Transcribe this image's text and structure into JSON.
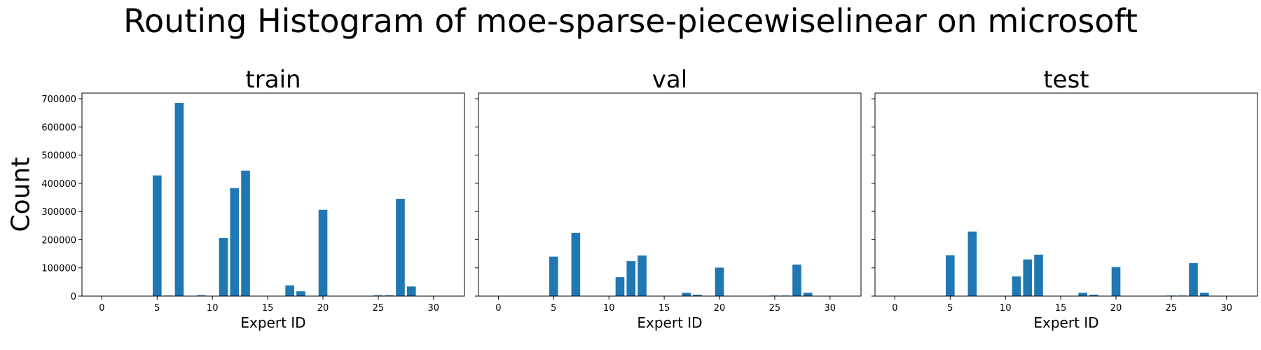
{
  "figure": {
    "title": "Routing Histogram of moe-sparse-piecewiselinear on microsoft"
  },
  "chart_data": [
    {
      "type": "bar",
      "title": "train",
      "xlabel": "Expert ID",
      "ylabel": "Count",
      "xlim": [
        -1.8,
        32.8
      ],
      "ylim": [
        0,
        720000
      ],
      "x_ticks": [
        0,
        5,
        10,
        15,
        20,
        25,
        30
      ],
      "y_ticks": [
        0,
        100000,
        200000,
        300000,
        400000,
        500000,
        600000,
        700000
      ],
      "y_tick_labels": [
        "0",
        "100000",
        "200000",
        "300000",
        "400000",
        "500000",
        "600000",
        "700000"
      ],
      "bar_color": "#1f77b4",
      "categories": [
        0,
        1,
        2,
        3,
        4,
        5,
        6,
        7,
        8,
        9,
        10,
        11,
        12,
        13,
        14,
        15,
        16,
        17,
        18,
        19,
        20,
        21,
        22,
        23,
        24,
        25,
        26,
        27,
        28,
        29,
        30,
        31
      ],
      "values": [
        0,
        0,
        0,
        0,
        0,
        428000,
        2000,
        685000,
        0,
        3000,
        0,
        206000,
        383000,
        445000,
        0,
        0,
        0,
        38000,
        17000,
        0,
        306000,
        0,
        0,
        0,
        0,
        3000,
        3000,
        345000,
        34000,
        0,
        0,
        0
      ]
    },
    {
      "type": "bar",
      "title": "val",
      "xlabel": "Expert ID",
      "ylabel": "",
      "xlim": [
        -1.8,
        32.8
      ],
      "ylim": [
        0,
        720000
      ],
      "x_ticks": [
        0,
        5,
        10,
        15,
        20,
        25,
        30
      ],
      "bar_color": "#1f77b4",
      "categories": [
        0,
        1,
        2,
        3,
        4,
        5,
        6,
        7,
        8,
        9,
        10,
        11,
        12,
        13,
        14,
        15,
        16,
        17,
        18,
        19,
        20,
        21,
        22,
        23,
        24,
        25,
        26,
        27,
        28,
        29,
        30,
        31
      ],
      "values": [
        0,
        0,
        0,
        0,
        0,
        140000,
        0,
        224000,
        0,
        0,
        0,
        67000,
        124000,
        144000,
        0,
        0,
        0,
        12000,
        5000,
        0,
        101000,
        0,
        0,
        0,
        0,
        2000,
        2000,
        112000,
        12000,
        0,
        0,
        0
      ]
    },
    {
      "type": "bar",
      "title": "test",
      "xlabel": "Expert ID",
      "ylabel": "",
      "xlim": [
        -1.8,
        32.8
      ],
      "ylim": [
        0,
        720000
      ],
      "x_ticks": [
        0,
        5,
        10,
        15,
        20,
        25,
        30
      ],
      "bar_color": "#1f77b4",
      "categories": [
        0,
        1,
        2,
        3,
        4,
        5,
        6,
        7,
        8,
        9,
        10,
        11,
        12,
        13,
        14,
        15,
        16,
        17,
        18,
        19,
        20,
        21,
        22,
        23,
        24,
        25,
        26,
        27,
        28,
        29,
        30,
        31
      ],
      "values": [
        0,
        0,
        0,
        0,
        0,
        145000,
        0,
        229000,
        0,
        0,
        0,
        70000,
        130000,
        147000,
        0,
        0,
        0,
        12000,
        5000,
        0,
        103000,
        0,
        0,
        0,
        0,
        2000,
        2000,
        117000,
        12000,
        0,
        0,
        0
      ]
    }
  ]
}
